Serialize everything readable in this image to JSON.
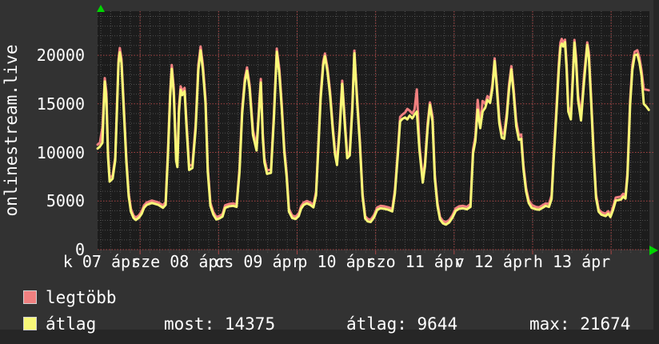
{
  "graph": {
    "title_vertical": "onlinestream.live",
    "legend": [
      {
        "label": "legtöbb",
        "color": "#f08080"
      },
      {
        "label": "átlag",
        "color": "#f8f878"
      }
    ],
    "stats": [
      {
        "label": "most:",
        "value": "14375"
      },
      {
        "label": "átlag:",
        "value": "9644"
      },
      {
        "label": "max:",
        "value": "21674"
      }
    ]
  },
  "colors": {
    "outer_bg": "#323232",
    "plot_bg": "#1c1c1c",
    "edge_strip": "#262626",
    "grid_minor": "#4f4f4f",
    "grid_major": "#a84444",
    "series_max": "#f08080",
    "series_avg": "#f8f878",
    "arrow_green": "#00d400",
    "text": "#ffffff"
  },
  "chart_data": {
    "type": "line",
    "title": "onlinestream.live",
    "ylabel": "onlinestream.live",
    "xlabel": "",
    "grid": true,
    "legend_position": "bottom-left",
    "ylim": [
      0,
      24534
    ],
    "y_ticks": [
      0,
      5000,
      10000,
      15000,
      20000
    ],
    "x_tick_labels": [
      "k 07 ápr",
      "sze 08 ápr",
      "cs 09 ápr",
      "p 10 ápr",
      "szo 11 ápr",
      "v 12 ápr",
      "h 13 ápr"
    ],
    "noon_label_hours": [
      1.2,
      25,
      49,
      73,
      97,
      121,
      145
    ],
    "midnight_hours": [
      13,
      37,
      61,
      85,
      109,
      133,
      157
    ],
    "hours_total": 168.7,
    "minor_x_step_hours": 3,
    "first_minor_x_hour": 1,
    "minor_y_step": 1000,
    "major_y_step": 5000,
    "series_names": [
      "legtöbb",
      "átlag"
    ],
    "columns": [
      "hour",
      "legtöbb(max)",
      "átlag(avg)"
    ],
    "points": [
      [
        0,
        10800,
        10400
      ],
      [
        0.7,
        11000,
        10600
      ],
      [
        1.5,
        12600,
        11000
      ],
      [
        2.2,
        17650,
        17300
      ],
      [
        2.7,
        16200,
        15500
      ],
      [
        3.2,
        10000,
        9500
      ],
      [
        3.7,
        7400,
        7000
      ],
      [
        4.6,
        7600,
        7300
      ],
      [
        5.4,
        9500,
        9200
      ],
      [
        6,
        15500,
        15000
      ],
      [
        6.4,
        19600,
        19200
      ],
      [
        6.8,
        20750,
        20300
      ],
      [
        7.3,
        19600,
        19200
      ],
      [
        8,
        15000,
        14500
      ],
      [
        8.8,
        9400,
        9000
      ],
      [
        9.5,
        5800,
        5500
      ],
      [
        10.2,
        4200,
        3900
      ],
      [
        11,
        3500,
        3250
      ],
      [
        11.7,
        3300,
        3050
      ],
      [
        12.7,
        3550,
        3300
      ],
      [
        13.5,
        3950,
        3700
      ],
      [
        14.2,
        4550,
        4300
      ],
      [
        15,
        4850,
        4600
      ],
      [
        16.6,
        5050,
        4800
      ],
      [
        18.6,
        4850,
        4600
      ],
      [
        20,
        4550,
        4300
      ],
      [
        20.8,
        4900,
        4600
      ],
      [
        21.5,
        10000,
        9500
      ],
      [
        22.2,
        16300,
        15800
      ],
      [
        22.7,
        19000,
        18600
      ],
      [
        23.3,
        16600,
        16000
      ],
      [
        24,
        9700,
        9200
      ],
      [
        24.4,
        9000,
        8500
      ],
      [
        24.9,
        14700,
        14200
      ],
      [
        25.4,
        16800,
        16450
      ],
      [
        25.9,
        16300,
        15900
      ],
      [
        26.6,
        16650,
        16300
      ],
      [
        27.2,
        13000,
        12500
      ],
      [
        28,
        8600,
        8200
      ],
      [
        29,
        8750,
        8400
      ],
      [
        30,
        13000,
        12500
      ],
      [
        30.8,
        19000,
        18500
      ],
      [
        31.5,
        20900,
        20500
      ],
      [
        32.2,
        19000,
        18500
      ],
      [
        33,
        15500,
        15000
      ],
      [
        33.7,
        8500,
        8000
      ],
      [
        34.5,
        4800,
        4500
      ],
      [
        35.4,
        3850,
        3600
      ],
      [
        36.3,
        3350,
        3100
      ],
      [
        37.2,
        3450,
        3200
      ],
      [
        38.2,
        3650,
        3400
      ],
      [
        39,
        4550,
        4300
      ],
      [
        40.2,
        4700,
        4450
      ],
      [
        41.5,
        4750,
        4500
      ],
      [
        42.5,
        4650,
        4400
      ],
      [
        43.4,
        8400,
        8000
      ],
      [
        44.2,
        14500,
        14000
      ],
      [
        45,
        17600,
        17200
      ],
      [
        45.7,
        18750,
        18400
      ],
      [
        46.5,
        16900,
        16500
      ],
      [
        47.5,
        12300,
        11800
      ],
      [
        48.6,
        10600,
        10200
      ],
      [
        49.4,
        15000,
        14500
      ],
      [
        49.9,
        17550,
        17200
      ],
      [
        50.5,
        12000,
        11500
      ],
      [
        51,
        9400,
        9000
      ],
      [
        51.8,
        8150,
        7800
      ],
      [
        53,
        8250,
        7900
      ],
      [
        53.9,
        14000,
        13500
      ],
      [
        54.8,
        20680,
        20350
      ],
      [
        55.6,
        18500,
        18000
      ],
      [
        56.3,
        15000,
        14500
      ],
      [
        57.1,
        10400,
        10000
      ],
      [
        57.8,
        7900,
        7500
      ],
      [
        58.5,
        4200,
        3900
      ],
      [
        59.5,
        3500,
        3250
      ],
      [
        60.5,
        3400,
        3150
      ],
      [
        61.5,
        3700,
        3450
      ],
      [
        62.2,
        4450,
        4200
      ],
      [
        63,
        4850,
        4600
      ],
      [
        64,
        5000,
        4750
      ],
      [
        65,
        4850,
        4600
      ],
      [
        66,
        4600,
        4350
      ],
      [
        66.8,
        5950,
        5600
      ],
      [
        67.5,
        11000,
        10500
      ],
      [
        68.2,
        16000,
        15500
      ],
      [
        69,
        19400,
        19000
      ],
      [
        69.5,
        20180,
        19900
      ],
      [
        70.3,
        18700,
        18300
      ],
      [
        71.1,
        16200,
        15800
      ],
      [
        71.9,
        12700,
        12300
      ],
      [
        72.6,
        10200,
        9800
      ],
      [
        73.2,
        9100,
        8700
      ],
      [
        74,
        12700,
        12200
      ],
      [
        74.8,
        17380,
        17050
      ],
      [
        75.6,
        13300,
        12800
      ],
      [
        76.3,
        9800,
        9400
      ],
      [
        77.1,
        10050,
        9700
      ],
      [
        77.9,
        15000,
        14500
      ],
      [
        78.5,
        20480,
        20200
      ],
      [
        79.3,
        16000,
        15500
      ],
      [
        80.2,
        11200,
        10800
      ],
      [
        81,
        5800,
        5500
      ],
      [
        81.8,
        3450,
        3200
      ],
      [
        82.6,
        3150,
        2900
      ],
      [
        83.5,
        3080,
        2840
      ],
      [
        84.5,
        3550,
        3300
      ],
      [
        85.5,
        4350,
        4100
      ],
      [
        86.5,
        4500,
        4250
      ],
      [
        87.7,
        4450,
        4200
      ],
      [
        88.9,
        4350,
        4100
      ],
      [
        90.1,
        4180,
        3930
      ],
      [
        90.9,
        6150,
        5800
      ],
      [
        91.8,
        10250,
        9800
      ],
      [
        92.5,
        13650,
        13200
      ],
      [
        93.2,
        13900,
        13450
      ],
      [
        94,
        14100,
        13600
      ],
      [
        94.7,
        14480,
        13400
      ],
      [
        95.4,
        14300,
        13800
      ],
      [
        96.2,
        14000,
        13500
      ],
      [
        96.9,
        14400,
        13900
      ],
      [
        97.6,
        16480,
        14200
      ],
      [
        98.4,
        10700,
        10200
      ],
      [
        99.4,
        7250,
        6900
      ],
      [
        100.1,
        9000,
        8600
      ],
      [
        100.9,
        13000,
        12500
      ],
      [
        101.6,
        15150,
        14900
      ],
      [
        102.4,
        13700,
        13200
      ],
      [
        103.1,
        7700,
        7300
      ],
      [
        103.9,
        4800,
        4500
      ],
      [
        104.7,
        3350,
        3100
      ],
      [
        105.6,
        2950,
        2700
      ],
      [
        106.5,
        2820,
        2570
      ],
      [
        107.5,
        3050,
        2800
      ],
      [
        108.5,
        3550,
        3300
      ],
      [
        109.5,
        4250,
        4000
      ],
      [
        110.5,
        4450,
        4200
      ],
      [
        111.7,
        4500,
        4250
      ],
      [
        112.9,
        4400,
        4150
      ],
      [
        114,
        4700,
        4400
      ],
      [
        114.8,
        10300,
        9900
      ],
      [
        115.5,
        11650,
        11200
      ],
      [
        116.2,
        15400,
        14400
      ],
      [
        117,
        12900,
        12500
      ],
      [
        117.7,
        15300,
        14200
      ],
      [
        118.5,
        15000,
        14600
      ],
      [
        119.2,
        15800,
        15400
      ],
      [
        120,
        15500,
        15100
      ],
      [
        120.7,
        17000,
        16600
      ],
      [
        121.4,
        19680,
        19400
      ],
      [
        122.1,
        16900,
        16400
      ],
      [
        122.8,
        13500,
        13000
      ],
      [
        123.6,
        12000,
        11500
      ],
      [
        124.3,
        11900,
        11400
      ],
      [
        125.1,
        14100,
        13600
      ],
      [
        125.8,
        17000,
        16500
      ],
      [
        126.5,
        18880,
        18550
      ],
      [
        127.2,
        16500,
        16000
      ],
      [
        128,
        13200,
        12700
      ],
      [
        128.8,
        11750,
        11300
      ],
      [
        129.5,
        11850,
        11400
      ],
      [
        130.2,
        8700,
        8300
      ],
      [
        131,
        6350,
        6000
      ],
      [
        131.8,
        5100,
        4800
      ],
      [
        132.7,
        4600,
        4300
      ],
      [
        134,
        4400,
        4150
      ],
      [
        135,
        4350,
        4100
      ],
      [
        136,
        4550,
        4300
      ],
      [
        137,
        4750,
        4500
      ],
      [
        138,
        4700,
        4400
      ],
      [
        138.8,
        5600,
        5200
      ],
      [
        139.4,
        9600,
        9100
      ],
      [
        140.2,
        14100,
        13500
      ],
      [
        141,
        19100,
        18500
      ],
      [
        141.5,
        21300,
        20800
      ],
      [
        141.9,
        21674,
        21200
      ],
      [
        142.4,
        21300,
        20900
      ],
      [
        142.9,
        21600,
        21350
      ],
      [
        143.4,
        19100,
        18500
      ],
      [
        143.9,
        14700,
        14200
      ],
      [
        144.7,
        13900,
        13400
      ],
      [
        145.3,
        18100,
        17500
      ],
      [
        145.8,
        21580,
        21300
      ],
      [
        146.3,
        19700,
        19200
      ],
      [
        146.9,
        15900,
        15400
      ],
      [
        147.8,
        13800,
        13300
      ],
      [
        148.7,
        17800,
        17200
      ],
      [
        149.7,
        21320,
        21050
      ],
      [
        150.2,
        20300,
        19800
      ],
      [
        150.8,
        16300,
        15800
      ],
      [
        151.7,
        9750,
        9300
      ],
      [
        152.4,
        5650,
        5300
      ],
      [
        153.2,
        4150,
        3900
      ],
      [
        154,
        3850,
        3600
      ],
      [
        155.3,
        3700,
        3450
      ],
      [
        156.1,
        3950,
        3700
      ],
      [
        156.8,
        3600,
        3350
      ],
      [
        157.6,
        4400,
        4100
      ],
      [
        158.4,
        5350,
        5050
      ],
      [
        159.2,
        5400,
        5100
      ],
      [
        160,
        5450,
        5150
      ],
      [
        160.7,
        5750,
        5450
      ],
      [
        161.4,
        5550,
        5250
      ],
      [
        162,
        8000,
        7600
      ],
      [
        162.8,
        15400,
        14900
      ],
      [
        163.5,
        19000,
        18500
      ],
      [
        164.2,
        20350,
        20000
      ],
      [
        165,
        20520,
        20100
      ],
      [
        165.7,
        19700,
        19200
      ],
      [
        166.3,
        18400,
        17900
      ],
      [
        167,
        16500,
        15000
      ],
      [
        167.8,
        16450,
        14700
      ],
      [
        168.5,
        16400,
        14375
      ]
    ]
  }
}
